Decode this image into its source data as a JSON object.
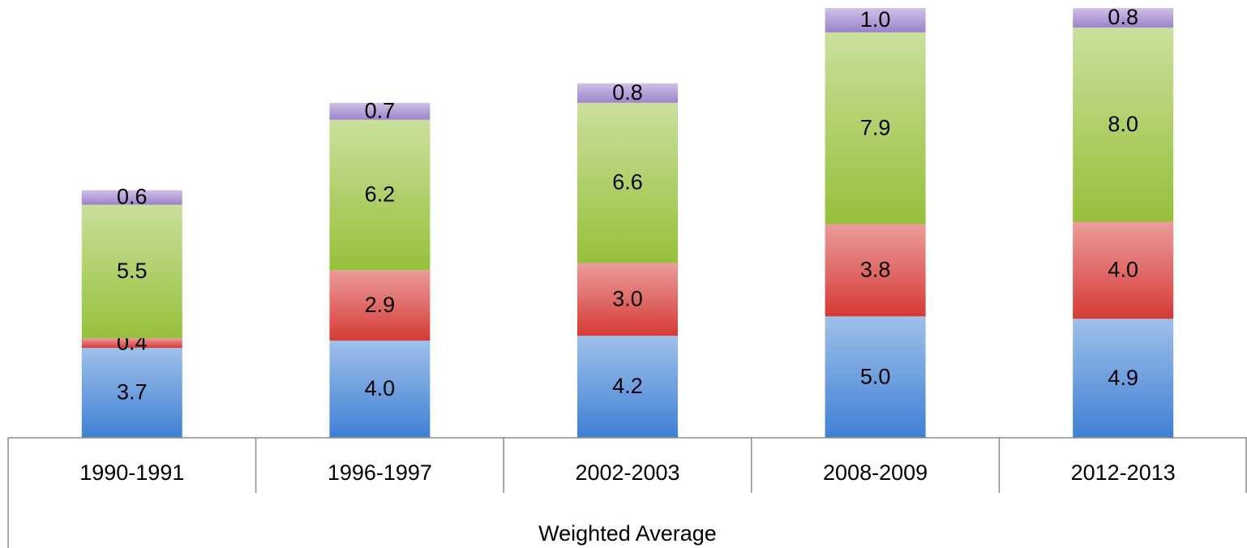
{
  "chart_data": {
    "type": "stacked_bar",
    "categories": [
      "1990-1991",
      "1996-1997",
      "2002-2003",
      "2008-2009",
      "2012-2013"
    ],
    "xlabel": "Weighted Average",
    "ylim": [
      0,
      17.7
    ],
    "series": [
      {
        "color": "#3f80d4",
        "values": [
          3.7,
          4.0,
          4.2,
          5.0,
          4.9
        ],
        "value_labels": [
          "3.7",
          "4.0",
          "4.2",
          "5.0",
          "4.9"
        ]
      },
      {
        "color": "#d63a36",
        "values": [
          0.4,
          2.9,
          3.0,
          3.8,
          4.0
        ],
        "value_labels": [
          "0.4",
          "2.9",
          "3.0",
          "3.8",
          "4.0"
        ]
      },
      {
        "color": "#96c03a",
        "values": [
          5.5,
          6.2,
          6.6,
          7.9,
          8.0
        ],
        "value_labels": [
          "5.5",
          "6.2",
          "6.6",
          "7.9",
          "8.0"
        ]
      },
      {
        "color": "#9d82cc",
        "values": [
          0.6,
          0.7,
          0.8,
          1.0,
          0.8
        ],
        "value_labels": [
          "0.6",
          "0.7",
          "0.8",
          "1.0",
          "0.8"
        ]
      }
    ]
  }
}
